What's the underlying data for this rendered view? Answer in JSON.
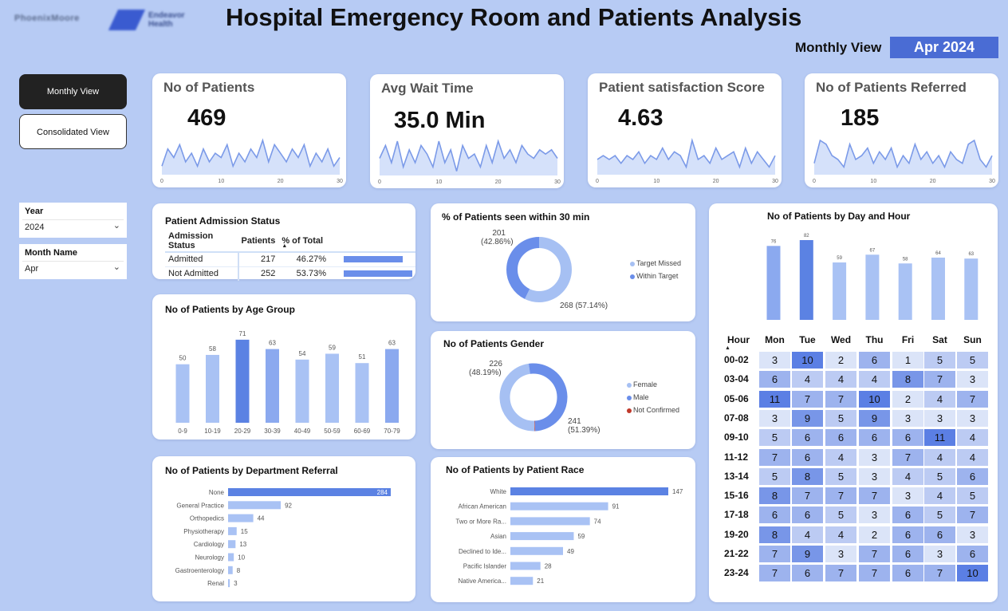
{
  "header": {
    "logo_left": "PhoenixMoore",
    "logo_right_line1": "Endeavor",
    "logo_right_line2": "Health",
    "title": "Hospital Emergency Room and Patients Analysis",
    "view_label": "Monthly View",
    "view_value": "Apr 2024"
  },
  "nav": {
    "monthly_view": "Monthly View",
    "consolidated_view": "Consolidated View"
  },
  "slicers": {
    "year": {
      "label": "Year",
      "value": "2024"
    },
    "month": {
      "label": "Month Name",
      "value": "Apr"
    }
  },
  "kpis": [
    {
      "title": "No of Patients",
      "value": "469",
      "series": [
        2,
        6,
        4,
        7,
        3,
        5,
        2,
        6,
        3,
        5,
        4,
        7,
        2,
        5,
        3,
        6,
        4,
        8,
        3,
        7,
        5,
        3,
        6,
        4,
        7,
        2,
        5,
        3,
        6,
        2,
        4
      ]
    },
    {
      "title": "Avg Wait Time",
      "value": "35.0 Min",
      "series": [
        4,
        7,
        3,
        8,
        2,
        6,
        3,
        7,
        5,
        2,
        8,
        3,
        6,
        1,
        7,
        4,
        5,
        2,
        7,
        3,
        8,
        4,
        6,
        3,
        7,
        5,
        4,
        6,
        5,
        6,
        4
      ]
    },
    {
      "title": "Patient satisfaction Score",
      "value": "4.63",
      "series": [
        4,
        5,
        4,
        5,
        3,
        5,
        4,
        6,
        3,
        5,
        4,
        7,
        4,
        6,
        5,
        2,
        9,
        4,
        5,
        3,
        7,
        4,
        5,
        6,
        2,
        7,
        3,
        6,
        4,
        2,
        5
      ]
    },
    {
      "title": "No of Patients Referred",
      "value": "185",
      "series": [
        3,
        9,
        8,
        5,
        4,
        2,
        8,
        4,
        5,
        7,
        3,
        6,
        4,
        7,
        2,
        5,
        3,
        8,
        4,
        6,
        3,
        5,
        2,
        6,
        4,
        3,
        8,
        9,
        4,
        2,
        5
      ]
    }
  ],
  "kpi_axis": {
    "ticks": [
      "0",
      "10",
      "20",
      "30"
    ]
  },
  "admission": {
    "title": "Patient Admission Status",
    "headers": [
      "Admission Status",
      "Patients",
      "% of Total"
    ],
    "rows": [
      {
        "status": "Admitted",
        "patients": "217",
        "pct": "46.27%",
        "fraction": 0.4627
      },
      {
        "status": "Not Admitted",
        "patients": "252",
        "pct": "53.73%",
        "fraction": 0.5373
      }
    ]
  },
  "donut_30min": {
    "title": "% of Patients seen within 30 min",
    "label_top_value": "201",
    "label_top_pct": "(42.86%)",
    "label_bottom": "268 (57.14%)",
    "legend": [
      "Target Missed",
      "Within Target"
    ]
  },
  "donut_gender": {
    "title": "No of Patients Gender",
    "label_top_value": "226",
    "label_top_pct": "(48.19%)",
    "label_bottom_value": "241",
    "label_bottom_pct": "(51.39%)",
    "legend": [
      "Female",
      "Male",
      "Not Confirmed"
    ]
  },
  "heatmap": {
    "title": "No of Patients by Day and Hour",
    "hour_label": "Hour",
    "days": [
      "Mon",
      "Tue",
      "Wed",
      "Thu",
      "Fri",
      "Sat",
      "Sun"
    ],
    "hours": [
      "00-02",
      "03-04",
      "05-06",
      "07-08",
      "09-10",
      "11-12",
      "13-14",
      "15-16",
      "17-18",
      "19-20",
      "21-22",
      "23-24"
    ],
    "cells": [
      [
        3,
        10,
        2,
        6,
        1,
        5,
        5
      ],
      [
        6,
        4,
        4,
        4,
        8,
        7,
        3
      ],
      [
        11,
        7,
        7,
        10,
        2,
        4,
        7
      ],
      [
        3,
        9,
        5,
        9,
        3,
        3,
        3
      ],
      [
        5,
        6,
        6,
        6,
        6,
        11,
        4
      ],
      [
        7,
        6,
        4,
        3,
        7,
        4,
        4
      ],
      [
        5,
        8,
        5,
        3,
        4,
        5,
        6
      ],
      [
        8,
        7,
        7,
        7,
        3,
        4,
        5
      ],
      [
        6,
        6,
        5,
        3,
        6,
        5,
        7
      ],
      [
        8,
        4,
        4,
        2,
        6,
        6,
        3
      ],
      [
        7,
        9,
        3,
        7,
        6,
        3,
        6
      ],
      [
        7,
        6,
        7,
        7,
        6,
        7,
        10
      ]
    ]
  },
  "chart_data": [
    {
      "type": "line",
      "title": "No of Patients",
      "x": [
        0,
        1,
        2,
        3,
        4,
        5,
        6,
        7,
        8,
        9,
        10,
        11,
        12,
        13,
        14,
        15,
        16,
        17,
        18,
        19,
        20,
        21,
        22,
        23,
        24,
        25,
        26,
        27,
        28,
        29,
        30
      ],
      "values": [
        2,
        6,
        4,
        7,
        3,
        5,
        2,
        6,
        3,
        5,
        4,
        7,
        2,
        5,
        3,
        6,
        4,
        8,
        3,
        7,
        5,
        3,
        6,
        4,
        7,
        2,
        5,
        3,
        6,
        2,
        4
      ]
    },
    {
      "type": "line",
      "title": "Avg Wait Time",
      "x": [
        0,
        1,
        2,
        3,
        4,
        5,
        6,
        7,
        8,
        9,
        10,
        11,
        12,
        13,
        14,
        15,
        16,
        17,
        18,
        19,
        20,
        21,
        22,
        23,
        24,
        25,
        26,
        27,
        28,
        29,
        30
      ],
      "values": [
        4,
        7,
        3,
        8,
        2,
        6,
        3,
        7,
        5,
        2,
        8,
        3,
        6,
        1,
        7,
        4,
        5,
        2,
        7,
        3,
        8,
        4,
        6,
        3,
        7,
        5,
        4,
        6,
        5,
        6,
        4
      ]
    },
    {
      "type": "line",
      "title": "Patient satisfaction Score",
      "x": [
        0,
        1,
        2,
        3,
        4,
        5,
        6,
        7,
        8,
        9,
        10,
        11,
        12,
        13,
        14,
        15,
        16,
        17,
        18,
        19,
        20,
        21,
        22,
        23,
        24,
        25,
        26,
        27,
        28,
        29,
        30
      ],
      "values": [
        4,
        5,
        4,
        5,
        3,
        5,
        4,
        6,
        3,
        5,
        4,
        7,
        4,
        6,
        5,
        2,
        9,
        4,
        5,
        3,
        7,
        4,
        5,
        6,
        2,
        7,
        3,
        6,
        4,
        2,
        5
      ]
    },
    {
      "type": "line",
      "title": "No of Patients Referred",
      "x": [
        0,
        1,
        2,
        3,
        4,
        5,
        6,
        7,
        8,
        9,
        10,
        11,
        12,
        13,
        14,
        15,
        16,
        17,
        18,
        19,
        20,
        21,
        22,
        23,
        24,
        25,
        26,
        27,
        28,
        29,
        30
      ],
      "values": [
        3,
        9,
        8,
        5,
        4,
        2,
        8,
        4,
        5,
        7,
        3,
        6,
        4,
        7,
        2,
        5,
        3,
        8,
        4,
        6,
        3,
        5,
        2,
        6,
        4,
        3,
        8,
        9,
        4,
        2,
        5
      ]
    },
    {
      "type": "pie",
      "title": "% of Patients seen within 30 min",
      "categories": [
        "Target Missed",
        "Within Target"
      ],
      "values": [
        268,
        201
      ]
    },
    {
      "type": "pie",
      "title": "No of Patients Gender",
      "categories": [
        "Female",
        "Male",
        "Not Confirmed"
      ],
      "values": [
        226,
        241,
        2
      ]
    },
    {
      "type": "bar",
      "title": "No of Patients by Age Group",
      "categories": [
        "0-9",
        "10-19",
        "20-29",
        "30-39",
        "40-49",
        "50-59",
        "60-69",
        "70-79"
      ],
      "values": [
        50,
        58,
        71,
        63,
        54,
        59,
        51,
        63
      ],
      "ylim": [
        0,
        75
      ]
    },
    {
      "type": "bar",
      "title": "No of Patients by Department Referral",
      "orientation": "horizontal",
      "categories": [
        "None",
        "General Practice",
        "Orthopedics",
        "Physiotherapy",
        "Cardiology",
        "Neurology",
        "Gastroenterology",
        "Renal"
      ],
      "values": [
        284,
        92,
        44,
        15,
        13,
        10,
        8,
        3
      ]
    },
    {
      "type": "bar",
      "title": "No of Patients by Patient Race",
      "orientation": "horizontal",
      "categories": [
        "White",
        "African American",
        "Two or More Ra...",
        "Asian",
        "Declined to Ide...",
        "Pacific Islander",
        "Native America..."
      ],
      "values": [
        147,
        91,
        74,
        59,
        49,
        28,
        21
      ]
    },
    {
      "type": "bar",
      "title": "No of Patients by Day and Hour",
      "categories": [
        "Mon",
        "Tue",
        "Wed",
        "Thu",
        "Fri",
        "Sat",
        "Sun"
      ],
      "values": [
        76,
        82,
        59,
        67,
        58,
        64,
        63
      ]
    }
  ],
  "colors": {
    "background": "#b7cbf4",
    "bar_light": "#a9c2f4",
    "bar_mid": "#8ba9ef",
    "bar_dark": "#5b82e3",
    "donut_light": "#a6c0f3",
    "donut_dark": "#6a8eea",
    "not_confirmed": "#c0392b"
  }
}
